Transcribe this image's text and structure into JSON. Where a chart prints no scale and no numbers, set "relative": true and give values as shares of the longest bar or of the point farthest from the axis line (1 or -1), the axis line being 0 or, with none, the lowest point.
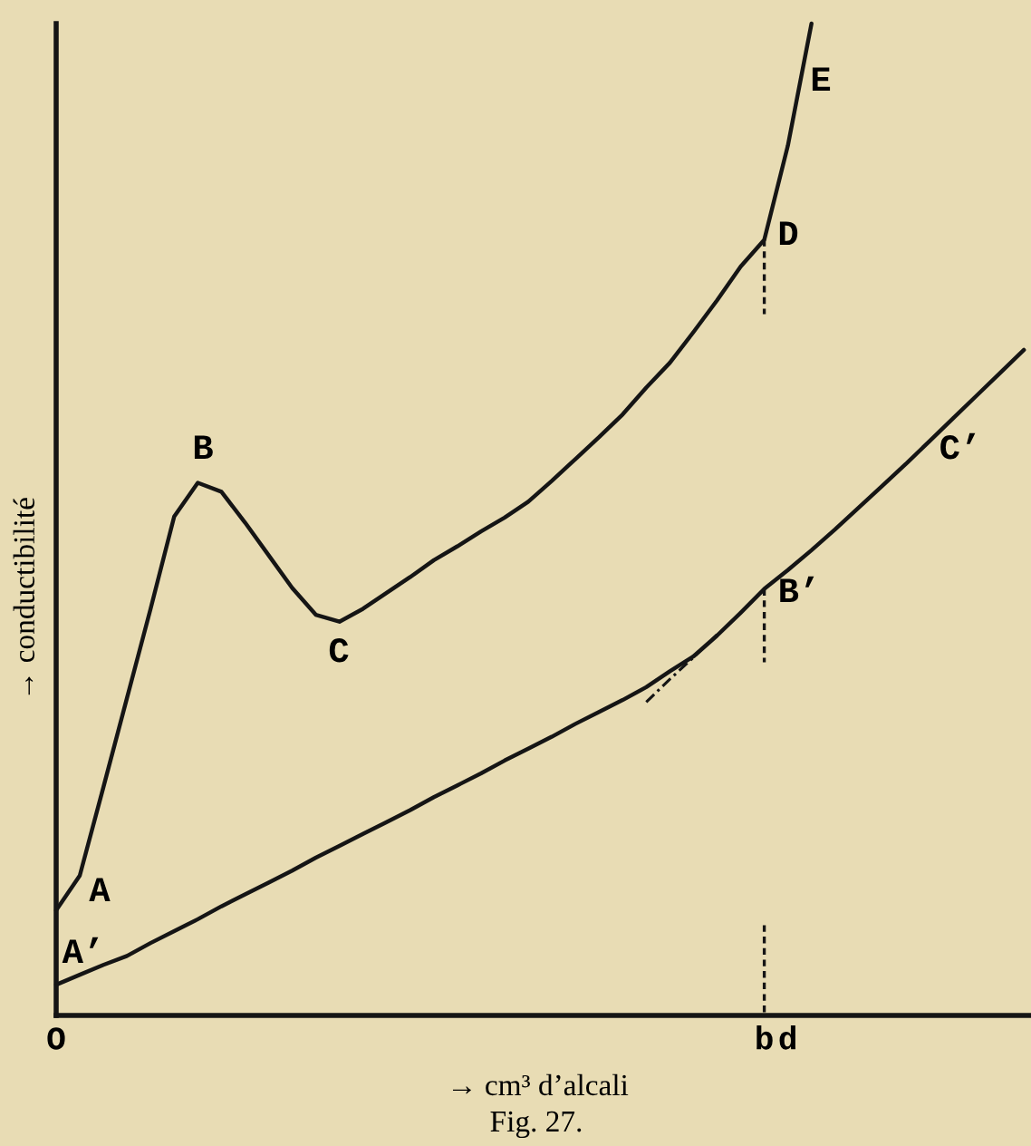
{
  "chart_data": {
    "type": "line",
    "relative": true,
    "xlabel": "→ cm³ d’alcali",
    "ylabel": "→ conductibilité",
    "categories": [
      "O",
      null,
      null,
      null,
      null,
      null,
      null,
      null,
      null,
      null,
      null,
      null,
      null,
      null,
      null,
      null,
      null,
      null,
      null,
      null,
      null,
      null,
      null,
      null,
      null,
      null,
      null,
      null,
      null,
      null,
      "b",
      "d",
      null,
      null,
      null,
      null,
      null,
      null,
      null,
      null,
      null,
      null
    ],
    "series": [
      {
        "color": "#151515",
        "line_style": "solid",
        "values": [
          0.106,
          0.141,
          0.23,
          0.32,
          0.41,
          0.503,
          0.537,
          0.528,
          0.497,
          0.464,
          0.431,
          0.404,
          0.397,
          0.41,
          0.426,
          0.442,
          0.459,
          0.473,
          0.488,
          0.502,
          0.518,
          0.539,
          0.561,
          0.583,
          0.606,
          0.633,
          0.658,
          0.689,
          0.721,
          0.755,
          0.782,
          0.877,
          1.0,
          null,
          null,
          null,
          null,
          null,
          null,
          null,
          null,
          null
        ]
      },
      {
        "color": "#151515",
        "line_style": "solid",
        "values": [
          0.031,
          0.041,
          0.051,
          0.06,
          0.073,
          0.085,
          0.097,
          0.11,
          0.122,
          0.134,
          0.146,
          0.159,
          0.171,
          0.183,
          0.195,
          0.207,
          0.22,
          0.232,
          0.244,
          0.257,
          0.269,
          0.281,
          0.294,
          0.306,
          0.318,
          0.331,
          0.347,
          0.362,
          0.383,
          0.406,
          0.43,
          0.449,
          0.469,
          0.49,
          0.512,
          0.534,
          0.556,
          0.579,
          0.602,
          0.625,
          0.648,
          0.671
        ]
      },
      {
        "color": "#151515",
        "line_style": "dashed",
        "x": [
          "b",
          "b"
        ],
        "values": [
          0.782,
          0.707
        ]
      },
      {
        "color": "#151515",
        "line_style": "dashed",
        "x": [
          "b",
          "b"
        ],
        "values": [
          0.43,
          0.356
        ]
      },
      {
        "color": "#151515",
        "line_style": "dashed",
        "x": [
          "b",
          "b"
        ],
        "values": [
          0.091,
          0
        ]
      },
      {
        "color": "#151515",
        "line_style": "dashdot",
        "values": [
          null,
          null,
          null,
          null,
          null,
          null,
          null,
          null,
          null,
          null,
          null,
          null,
          null,
          null,
          null,
          null,
          null,
          null,
          null,
          null,
          null,
          null,
          null,
          null,
          null,
          0.316,
          0.339,
          0.361,
          0.384,
          null,
          null,
          null,
          null,
          null,
          null,
          null,
          null,
          null,
          null,
          null,
          null,
          null
        ]
      }
    ],
    "annotations": [
      "A",
      "A’",
      "B",
      "C",
      "D",
      "E",
      "B’",
      "C’",
      "Fig. 27."
    ]
  }
}
